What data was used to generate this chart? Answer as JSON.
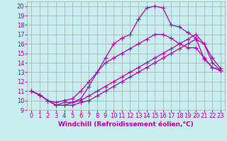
{
  "title": "",
  "xlabel": "Windchill (Refroidissement éolien,°C)",
  "bg_color": "#c8eef0",
  "line_color": "#aa00aa",
  "grid_color": "#aaaaaa",
  "xlim": [
    -0.5,
    23.5
  ],
  "ylim": [
    9,
    20.5
  ],
  "yticks": [
    9,
    10,
    11,
    12,
    13,
    14,
    15,
    16,
    17,
    18,
    19,
    20
  ],
  "xticks": [
    0,
    1,
    2,
    3,
    4,
    5,
    6,
    7,
    8,
    9,
    10,
    11,
    12,
    13,
    14,
    15,
    16,
    17,
    18,
    19,
    20,
    21,
    22,
    23
  ],
  "lines": [
    {
      "x": [
        0,
        1,
        2,
        3,
        4,
        5,
        6,
        7,
        8,
        9,
        10,
        11,
        12,
        13,
        14,
        15,
        16,
        17,
        18,
        19,
        20,
        21,
        22,
        23
      ],
      "y": [
        11.0,
        10.6,
        10.0,
        9.5,
        9.8,
        9.8,
        10.2,
        11.5,
        13.0,
        14.5,
        16.0,
        16.6,
        17.0,
        18.6,
        19.8,
        20.0,
        19.8,
        18.0,
        17.8,
        17.2,
        16.6,
        14.4,
        13.5,
        13.2
      ]
    },
    {
      "x": [
        0,
        1,
        2,
        3,
        4,
        5,
        6,
        7,
        8,
        9,
        10,
        11,
        12,
        13,
        14,
        15,
        16,
        17,
        18,
        19,
        20,
        21,
        22,
        23
      ],
      "y": [
        11.0,
        10.6,
        10.0,
        9.8,
        10.0,
        10.2,
        11.0,
        12.0,
        13.0,
        14.0,
        14.5,
        15.0,
        15.5,
        16.0,
        16.5,
        17.0,
        17.0,
        16.6,
        16.0,
        15.6,
        15.6,
        14.5,
        13.5,
        13.2
      ]
    },
    {
      "x": [
        0,
        1,
        2,
        3,
        4,
        5,
        6,
        7,
        8,
        9,
        10,
        11,
        12,
        13,
        14,
        15,
        16,
        17,
        18,
        19,
        20,
        21,
        22,
        23
      ],
      "y": [
        11.0,
        10.6,
        10.0,
        9.5,
        9.5,
        9.8,
        10.0,
        10.5,
        11.0,
        11.5,
        12.0,
        12.5,
        13.0,
        13.5,
        14.0,
        14.5,
        15.0,
        15.5,
        16.0,
        16.5,
        17.0,
        16.0,
        14.5,
        13.4
      ]
    },
    {
      "x": [
        0,
        1,
        2,
        3,
        4,
        5,
        6,
        7,
        8,
        9,
        10,
        11,
        12,
        13,
        14,
        15,
        16,
        17,
        18,
        19,
        20,
        21,
        22,
        23
      ],
      "y": [
        11.0,
        10.6,
        10.0,
        9.5,
        9.5,
        9.5,
        9.8,
        10.0,
        10.5,
        11.0,
        11.5,
        12.0,
        12.5,
        13.0,
        13.5,
        14.0,
        14.5,
        15.0,
        15.5,
        16.0,
        16.5,
        16.0,
        14.0,
        13.2
      ]
    }
  ],
  "marker": "+",
  "markersize": 4,
  "linewidth": 0.9,
  "tick_fontsize": 6,
  "xlabel_fontsize": 6.5,
  "title_fontsize": 6
}
